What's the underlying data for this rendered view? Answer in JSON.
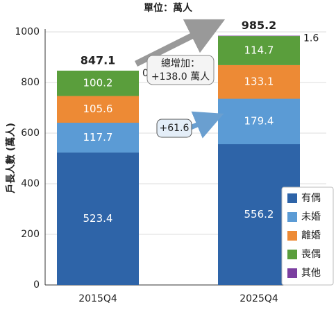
{
  "chart_data": {
    "type": "stacked_bar",
    "title": "單位：萬人",
    "y_label": "戶長人數 (萬人)",
    "categories": [
      "2015Q4",
      "2025Q4"
    ],
    "series": [
      {
        "name": "有偶",
        "color": "#2e64a8",
        "values": [
          523.4,
          556.2
        ]
      },
      {
        "name": "未婚",
        "color": "#5b9bd5",
        "values": [
          117.7,
          179.4
        ]
      },
      {
        "name": "離婚",
        "color": "#ed8a35",
        "values": [
          105.6,
          133.1
        ]
      },
      {
        "name": "喪偶",
        "color": "#5a9e3c",
        "values": [
          100.2,
          114.7
        ]
      },
      {
        "name": "其他",
        "color": "#7b3fa0",
        "values": [
          0,
          1.6
        ],
        "value_labels": [
          "0.0",
          "1.6"
        ]
      }
    ],
    "totals": [
      847.1,
      985.2
    ],
    "annotations": [
      "總增加：",
      "+138.0 萬人",
      "+61.6"
    ],
    "ylim": [
      0,
      1000
    ],
    "yticks": [
      0,
      200,
      400,
      600,
      800,
      1000
    ],
    "grid": true,
    "legend": "lower right"
  }
}
